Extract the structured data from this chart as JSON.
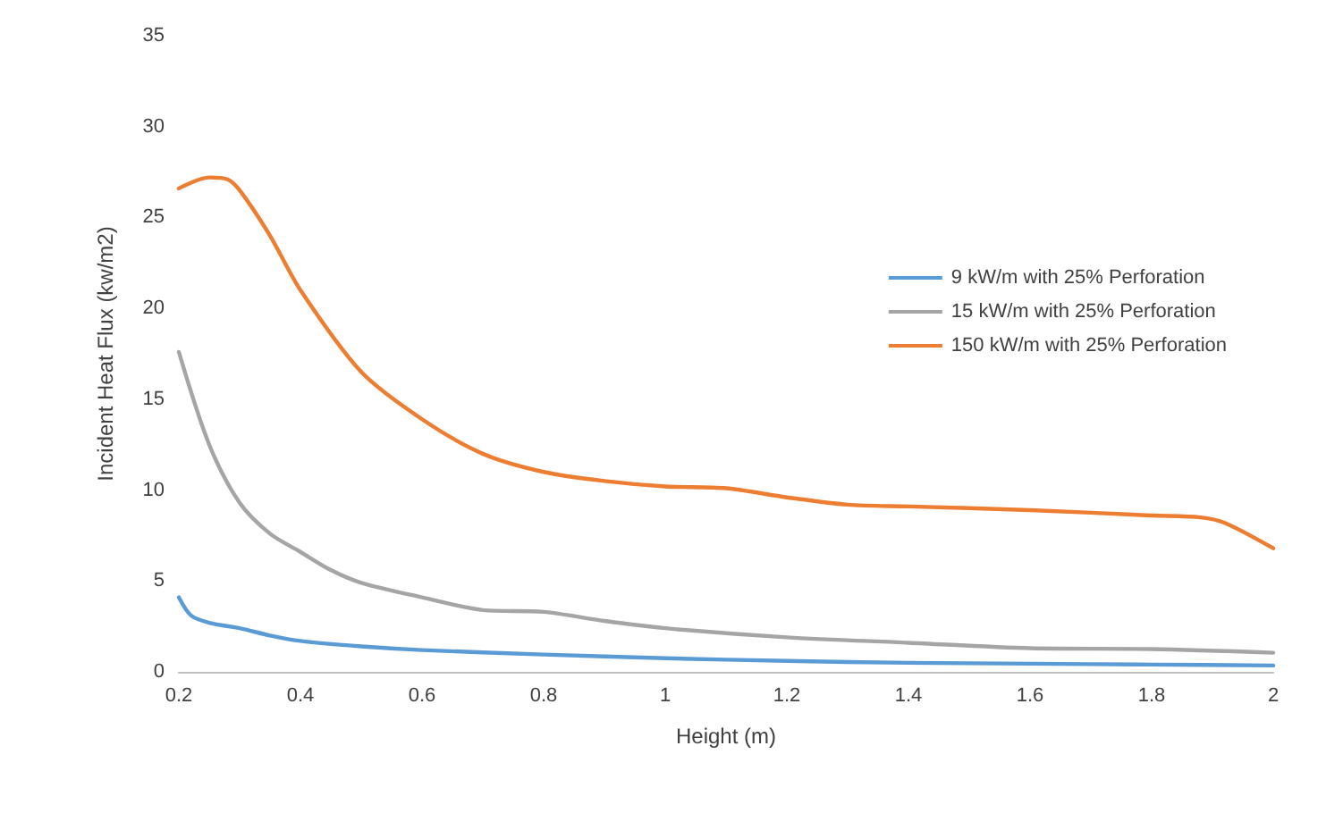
{
  "chart_data": {
    "type": "line",
    "xlabel": "Height (m)",
    "ylabel": "Incident Heat Flux (kw/m2)",
    "xlim": [
      0.2,
      2
    ],
    "xticks": [
      0.2,
      0.4,
      0.6,
      0.8,
      1,
      1.2,
      1.4,
      1.6,
      1.8,
      2
    ],
    "ylim": [
      0,
      35
    ],
    "yticks": [
      0,
      5,
      10,
      15,
      20,
      25,
      30,
      35
    ],
    "grid": false,
    "legend": "right",
    "marker": "none",
    "line_style": "solid",
    "series": [
      {
        "name": "9 kW/m with 25% Perforation",
        "color": "#5b9bd5",
        "x": [
          0.2,
          0.22,
          0.25,
          0.3,
          0.35,
          0.4,
          0.5,
          0.6,
          0.8,
          1.0,
          1.2,
          1.4,
          1.6,
          1.8,
          2.0
        ],
        "values": [
          4.1,
          3.1,
          2.7,
          2.4,
          2.0,
          1.7,
          1.4,
          1.2,
          0.95,
          0.75,
          0.6,
          0.5,
          0.45,
          0.4,
          0.35
        ]
      },
      {
        "name": "15 kW/m with 25% Perforation",
        "color": "#a5a5a5",
        "x": [
          0.2,
          0.25,
          0.3,
          0.35,
          0.4,
          0.45,
          0.5,
          0.6,
          0.7,
          0.8,
          0.9,
          1.0,
          1.2,
          1.4,
          1.6,
          1.8,
          2.0
        ],
        "values": [
          17.6,
          12.5,
          9.3,
          7.6,
          6.6,
          5.6,
          4.9,
          4.1,
          3.4,
          3.3,
          2.8,
          2.4,
          1.9,
          1.6,
          1.3,
          1.25,
          1.05
        ]
      },
      {
        "name": "150 kW/m with 25% Perforation",
        "color": "#ed7d31",
        "x": [
          0.2,
          0.25,
          0.28,
          0.3,
          0.35,
          0.4,
          0.5,
          0.6,
          0.7,
          0.8,
          0.9,
          1.0,
          1.1,
          1.2,
          1.3,
          1.4,
          1.6,
          1.8,
          1.88,
          1.92,
          2.0
        ],
        "values": [
          26.6,
          27.2,
          27.1,
          26.5,
          24,
          21,
          16.5,
          13.9,
          12,
          11,
          10.5,
          10.2,
          10.1,
          9.6,
          9.2,
          9.1,
          8.9,
          8.6,
          8.5,
          8.2,
          6.8
        ]
      }
    ]
  }
}
